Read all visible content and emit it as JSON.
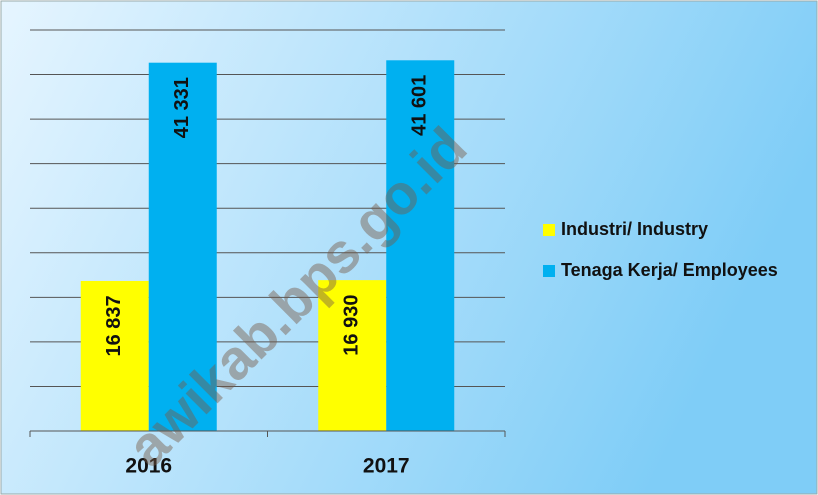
{
  "chart_data": {
    "type": "bar",
    "categories": [
      "2016",
      "2017"
    ],
    "series": [
      {
        "name": "Industri/ Industry",
        "color": "#ffff00",
        "values": [
          16837,
          16930
        ],
        "value_labels": [
          "16 837",
          "16 930"
        ]
      },
      {
        "name": "Tenaga Kerja/ Employees",
        "color": "#00b0f0",
        "values": [
          41331,
          41601
        ],
        "value_labels": [
          "41 331",
          "41 601"
        ]
      }
    ],
    "ylim": [
      0,
      45000
    ],
    "yticks": [
      0,
      5000,
      10000,
      15000,
      20000,
      25000,
      30000,
      35000,
      40000,
      45000
    ],
    "grid": true,
    "legend": "right",
    "watermark": "awikab.bps.go.id"
  }
}
